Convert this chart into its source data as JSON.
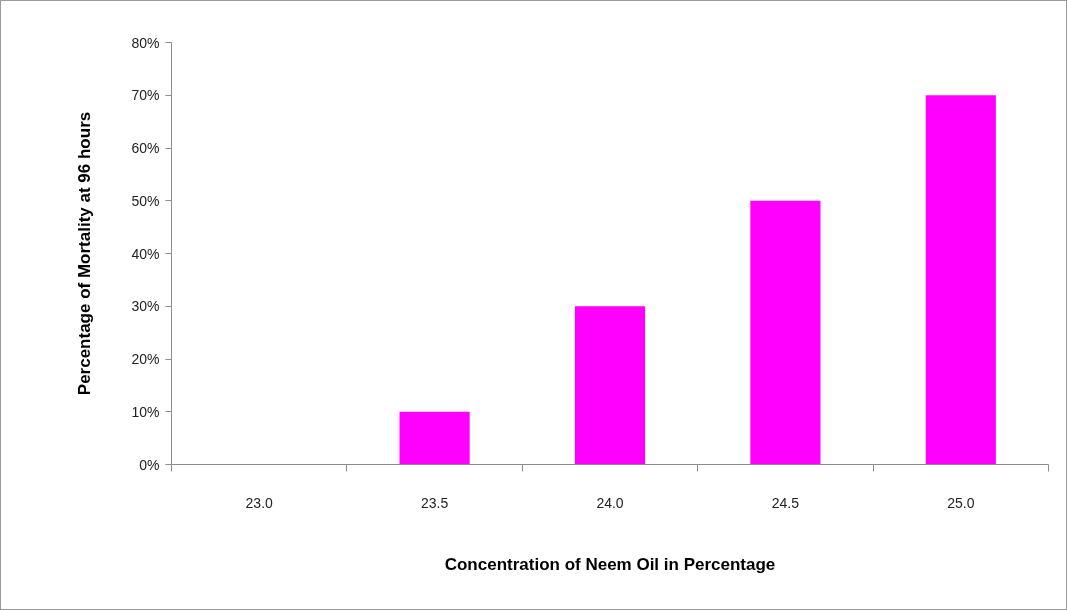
{
  "chart_data": {
    "type": "bar",
    "xlabel": "Concentration of Neem Oil in Percentage",
    "ylabel": "Percentage of Mortality at 96 hours",
    "categories": [
      "23.0",
      "23.5",
      "24.0",
      "24.5",
      "25.0"
    ],
    "values": [
      0,
      10,
      30,
      50,
      70
    ],
    "color": "#ff00ff",
    "ylim": [
      0,
      80
    ],
    "yticks": [
      {
        "value": 0,
        "label": "0%"
      },
      {
        "value": 10,
        "label": "10%"
      },
      {
        "value": 20,
        "label": "20%"
      },
      {
        "value": 30,
        "label": "30%"
      },
      {
        "value": 40,
        "label": "40%"
      },
      {
        "value": 50,
        "label": "50%"
      },
      {
        "value": 60,
        "label": "60%"
      },
      {
        "value": 70,
        "label": "70%"
      },
      {
        "value": 80,
        "label": "80%"
      }
    ]
  }
}
